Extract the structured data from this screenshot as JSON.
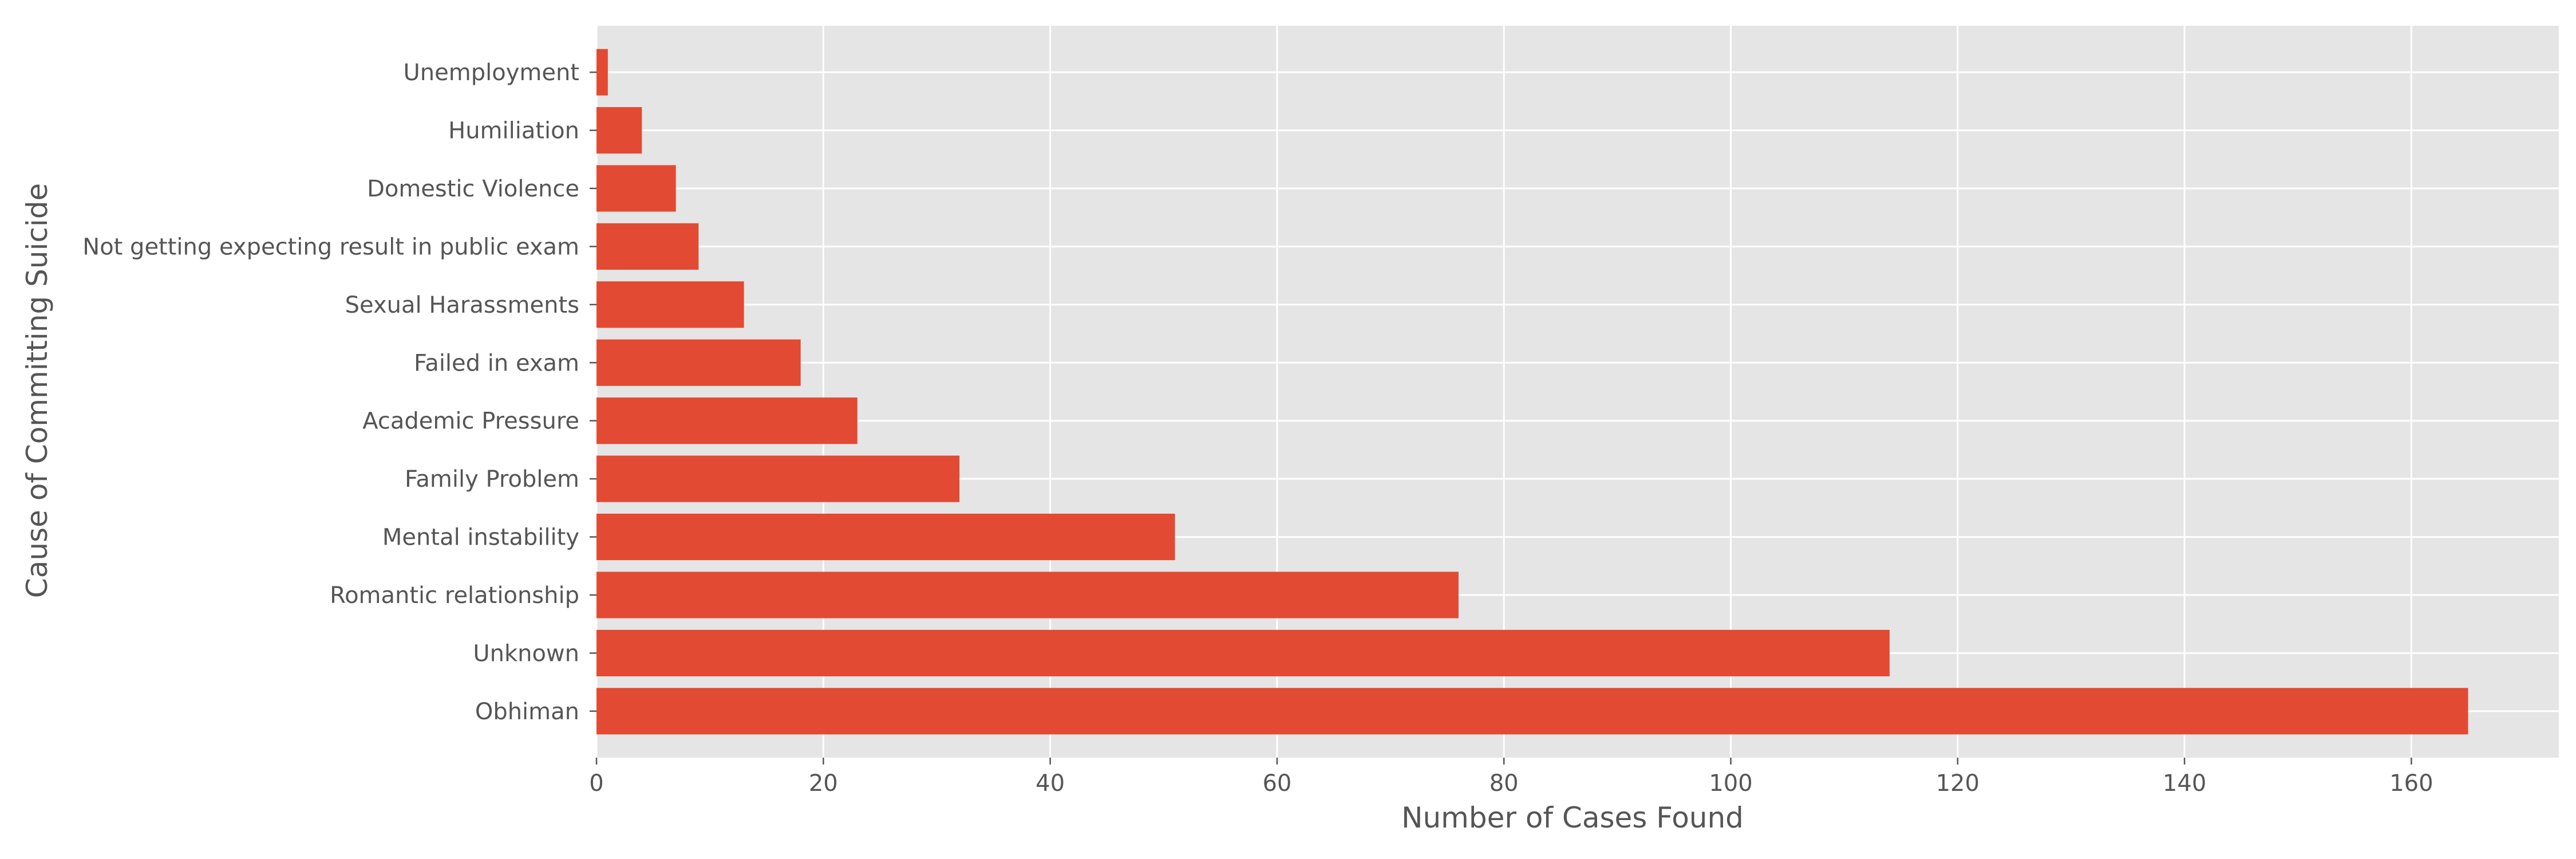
{
  "chart_data": {
    "type": "bar",
    "orientation": "horizontal",
    "title": "",
    "xlabel": "Number of Cases Found",
    "ylabel": "Cause of Committing Suicide",
    "categories": [
      "Obhiman",
      "Unknown",
      "Romantic relationship",
      "Mental instability",
      "Family Problem",
      "Academic Pressure",
      "Failed in exam",
      "Sexual Harassments",
      "Not getting expecting result in public exam",
      "Domestic Violence",
      "Humiliation",
      "Unemployment "
    ],
    "values": [
      165,
      114,
      76,
      51,
      32,
      23,
      18,
      13,
      9,
      7,
      4,
      1
    ],
    "xlim": [
      0,
      173
    ],
    "xticks": [
      0,
      20,
      40,
      60,
      80,
      100,
      120,
      140,
      160
    ],
    "grid": true,
    "bar_color": "#E24A33",
    "plot_background": "#E5E5E5",
    "grid_color": "#FFFFFF"
  }
}
